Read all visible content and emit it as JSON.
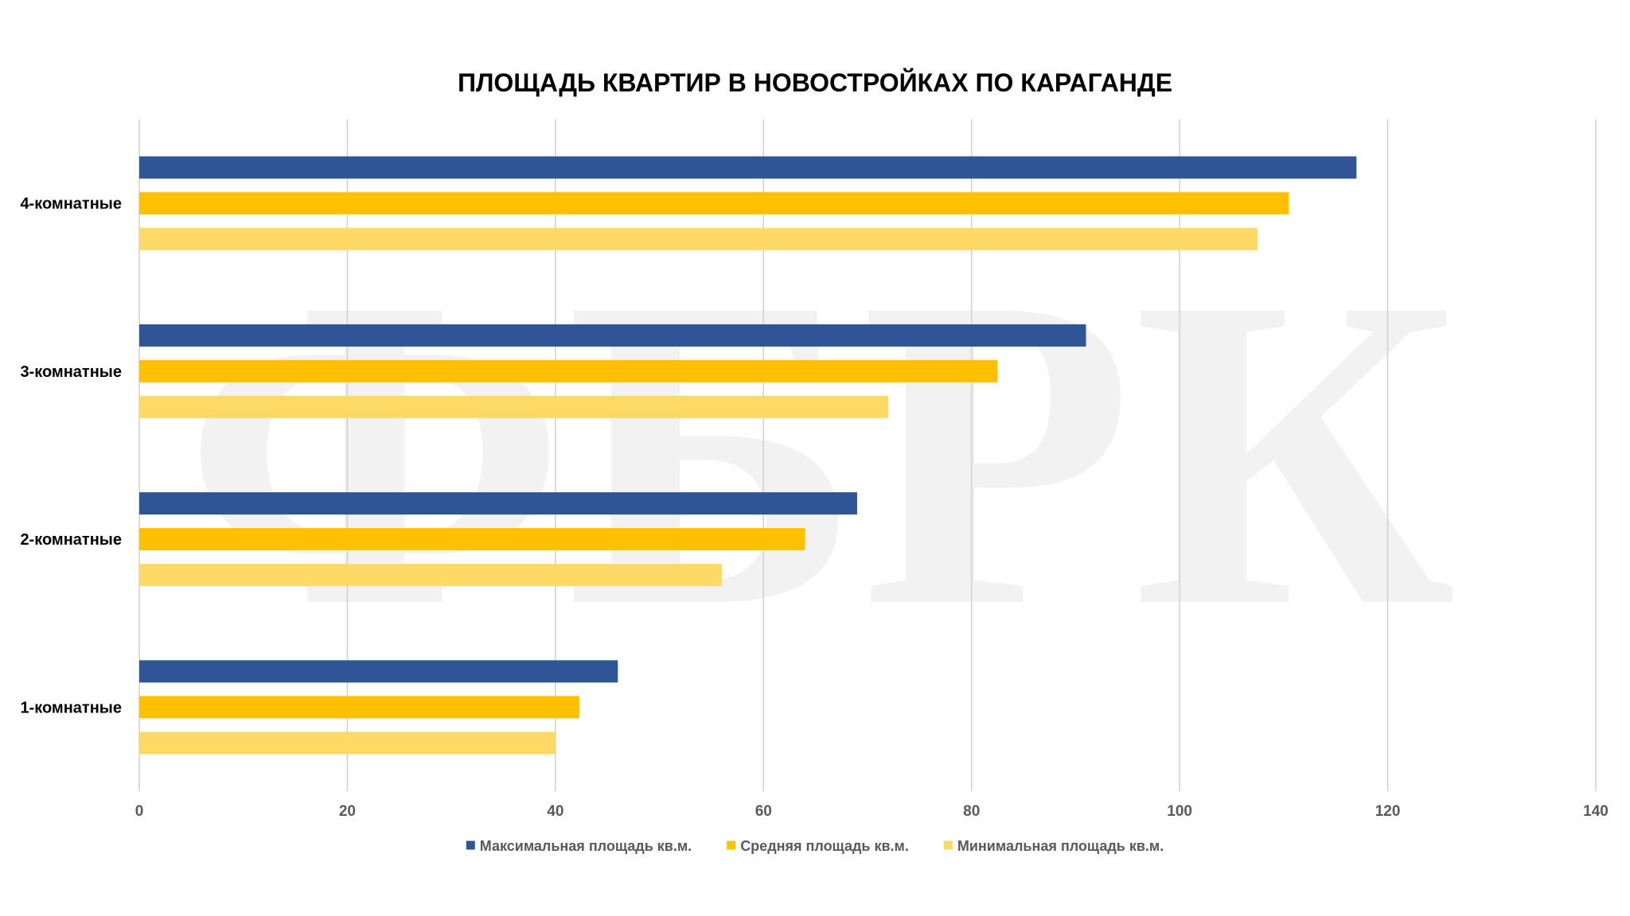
{
  "chart_data": {
    "type": "bar",
    "orientation": "horizontal",
    "title": "ПЛОЩАДЬ КВАРТИР В НОВОСТРОЙКАХ ПО КАРАГАНДЕ",
    "xlabel": "",
    "ylabel": "",
    "xlim": [
      0,
      140
    ],
    "x_ticks": [
      0,
      20,
      40,
      60,
      80,
      100,
      120,
      140
    ],
    "grid": true,
    "legend_position": "bottom",
    "categories": [
      "4-комнатные",
      "3-комнатные",
      "2-комнатные",
      "1-комнатные"
    ],
    "series": [
      {
        "name": "Максимальная площадь кв.м.",
        "color": "#2f5597",
        "values": [
          117,
          91,
          69,
          46
        ]
      },
      {
        "name": "Средняя площадь кв.м.",
        "color": "#ffc000",
        "values": [
          110.5,
          82.5,
          64,
          42.3
        ]
      },
      {
        "name": "Минимальная площадь кв.м.",
        "color": "#ffd966",
        "values": [
          107.5,
          72,
          56,
          40
        ]
      }
    ],
    "watermark_text": "ФБРК"
  }
}
